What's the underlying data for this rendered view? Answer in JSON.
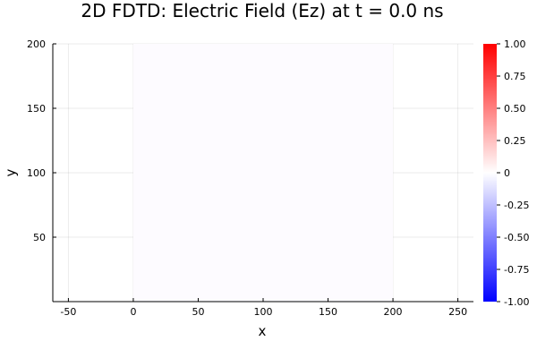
{
  "chart_data": {
    "type": "heatmap",
    "title": "2D FDTD: Electric Field (Ez) at t = 0.0 ns",
    "xlabel": "x",
    "ylabel": "y",
    "xlim": [
      -62,
      262
    ],
    "ylim": [
      0,
      200
    ],
    "x_ticks": [
      -50,
      0,
      50,
      100,
      150,
      200,
      250
    ],
    "x_tick_labels": [
      "-50",
      "0",
      "50",
      "100",
      "150",
      "200",
      "250"
    ],
    "y_ticks": [
      50,
      100,
      150,
      200
    ],
    "y_tick_labels": [
      "50",
      "100",
      "150",
      "200"
    ],
    "grid": true,
    "field_extent": {
      "x": [
        0,
        200
      ],
      "y": [
        0,
        200
      ]
    },
    "field_value": 0.0,
    "field_color": "#fdfbff",
    "colorbar": {
      "range": [
        -1.0,
        1.0
      ],
      "ticks": [
        -1.0,
        -0.75,
        -0.5,
        -0.25,
        0,
        0.25,
        0.5,
        0.75,
        1.0
      ],
      "tick_labels": [
        "-1.00",
        "-0.75",
        "-0.50",
        "-0.25",
        "0",
        "0.25",
        "0.50",
        "0.75",
        "1.00"
      ],
      "colors": {
        "min": "#0000ff",
        "mid": "#ffffff",
        "max": "#ff0000"
      }
    }
  }
}
